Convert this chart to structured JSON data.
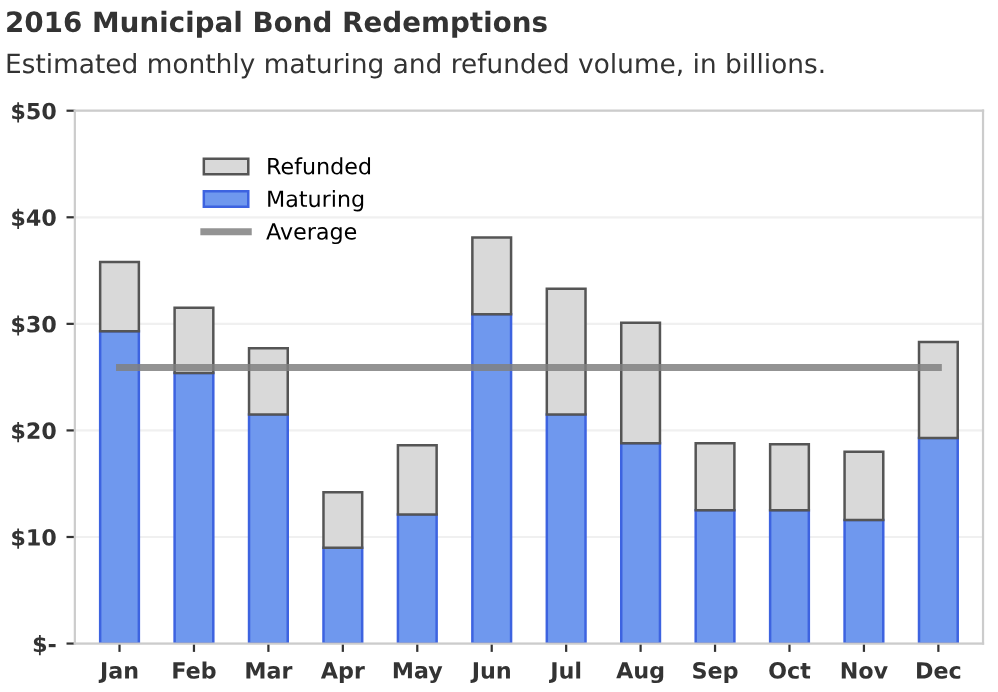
{
  "chart_data": {
    "type": "bar",
    "title": "2016 Municipal Bond Redemptions",
    "subtitle": "Estimated monthly maturing and refunded volume, in billions.",
    "categories": [
      "Jan",
      "Feb",
      "Mar",
      "Apr",
      "May",
      "Jun",
      "Jul",
      "Aug",
      "Sep",
      "Oct",
      "Nov",
      "Dec"
    ],
    "stacked": true,
    "series": [
      {
        "name": "Maturing",
        "color": "#6f98ee",
        "values": [
          29.3,
          25.4,
          21.5,
          9.0,
          12.1,
          30.9,
          21.5,
          18.8,
          12.5,
          12.5,
          11.6,
          19.3
        ]
      },
      {
        "name": "Refunded",
        "color": "#d9d9d9",
        "values": [
          6.5,
          6.1,
          6.2,
          5.2,
          6.5,
          7.2,
          11.8,
          11.3,
          6.3,
          6.2,
          6.4,
          9.0
        ]
      },
      {
        "name": "Average",
        "type": "line",
        "color": "#808080",
        "values": [
          25.9,
          25.9,
          25.9,
          25.9,
          25.9,
          25.9,
          25.9,
          25.9,
          25.9,
          25.9,
          25.9,
          25.9
        ]
      }
    ],
    "ylim": [
      0,
      50
    ],
    "yticks": [
      {
        "value": 0,
        "label": "$-"
      },
      {
        "value": 10,
        "label": "$10"
      },
      {
        "value": 20,
        "label": "$20"
      },
      {
        "value": 30,
        "label": "$30"
      },
      {
        "value": 40,
        "label": "$40"
      },
      {
        "value": 50,
        "label": "$50"
      }
    ],
    "grid": "y",
    "legend": "top left"
  }
}
